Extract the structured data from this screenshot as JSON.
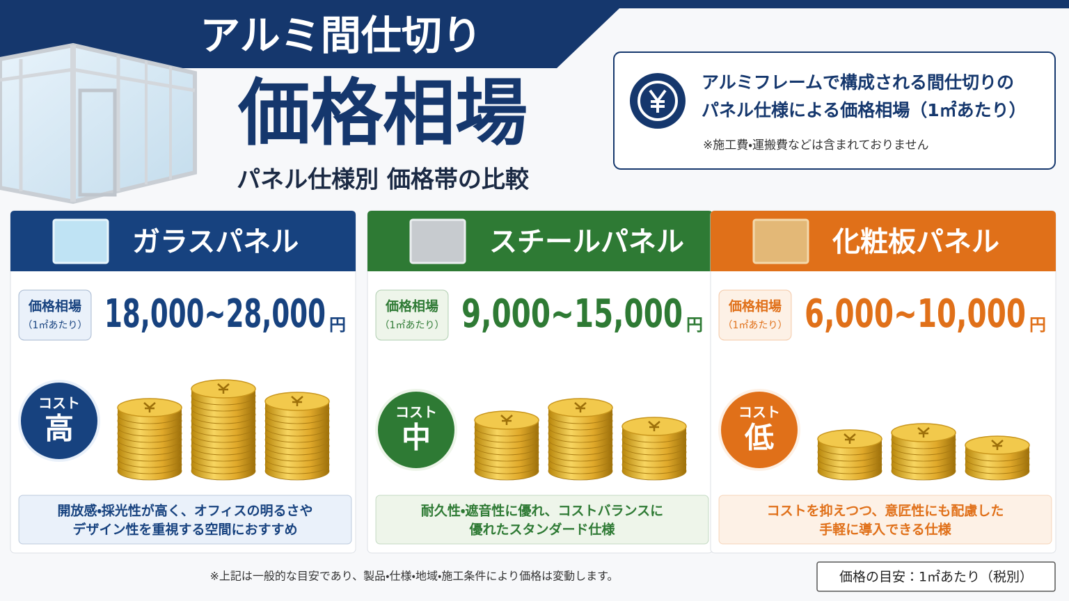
{
  "header": {
    "title": "アルミ間仕切り",
    "main_title": "価格相場",
    "subtitle": "パネル仕様別 価格帯の比較"
  },
  "info": {
    "line1": "アルミフレームで構成される間仕切りの",
    "line2": "パネル仕様による価格相場（1㎡あたり）",
    "note": "※施工費・運搬費などは含まれておりません"
  },
  "panels": [
    {
      "name": "ガラスパネル",
      "color": "#17427f",
      "light": "#eaf1fa",
      "price_label": "価格相場",
      "price_unit": "（1㎡あたり）",
      "price": "18,000~28,000",
      "yen": "円",
      "cost_label": "コスト",
      "cost": "高",
      "description": [
        "開放感・採光性が高く、オフィスの明るさや",
        "デザイン性を重視する空間におすすめ"
      ]
    },
    {
      "name": "スチールパネル",
      "color": "#2e7a34",
      "light": "#eef5ea",
      "price_label": "価格相場",
      "price_unit": "（1㎡あたり）",
      "price": "9,000~15,000",
      "yen": "円",
      "cost_label": "コスト",
      "cost": "中",
      "description": [
        "耐久性・遮音性に優れ、コストバランスに",
        "優れたスタンダード仕様"
      ]
    },
    {
      "name": "化粧板パネル",
      "color": "#e07019",
      "light": "#fdf1e6",
      "price_label": "価格相場",
      "price_unit": "（1㎡あたり）",
      "price": "6,000~10,000",
      "yen": "円",
      "cost_label": "コスト",
      "cost": "低",
      "description": [
        "コストを抑えつつ、意匠性にも配慮した",
        "手軽に導入できる仕様"
      ]
    }
  ],
  "footer": {
    "note": "※上記は一般的な目安であり、製品・仕様・地域・施工条件により価格は変動します。",
    "badge": "価格の目安：1㎡あたり（税別）"
  }
}
